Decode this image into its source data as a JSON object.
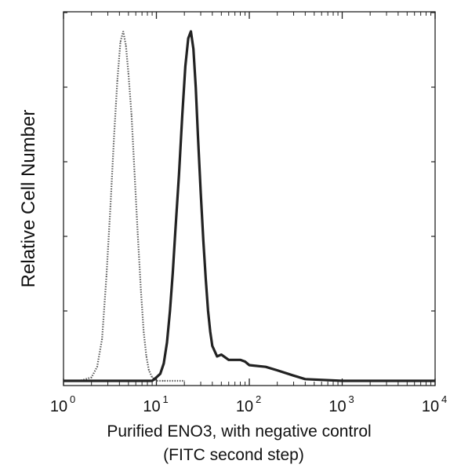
{
  "chart_data": {
    "type": "line",
    "title": "",
    "xlabel": "Purified ENO3, with negative control",
    "xlabel2": "(FITC second step)",
    "ylabel": "Relative Cell Number",
    "x_scale": "log",
    "xlim": [
      1,
      10000
    ],
    "ylim": [
      0,
      1
    ],
    "grid": false,
    "legend": "none",
    "x_ticks": [
      {
        "base": "10",
        "exp": "0",
        "value": 1
      },
      {
        "base": "10",
        "exp": "1",
        "value": 10
      },
      {
        "base": "10",
        "exp": "2",
        "value": 100
      },
      {
        "base": "10",
        "exp": "3",
        "value": 1000
      },
      {
        "base": "10",
        "exp": "4",
        "value": 10000
      }
    ],
    "series": [
      {
        "style": "dotted",
        "color": "#555555",
        "x": [
          1.0,
          1.5,
          2.0,
          2.3,
          2.6,
          2.9,
          3.2,
          3.5,
          3.8,
          4.1,
          4.4,
          4.7,
          5.0,
          5.4,
          5.8,
          6.3,
          6.8,
          7.3,
          7.8,
          8.3,
          9.0,
          10.0,
          12.0,
          20.0
        ],
        "y": [
          0.0,
          0.0,
          0.01,
          0.04,
          0.12,
          0.3,
          0.5,
          0.7,
          0.86,
          0.97,
          1.0,
          0.96,
          0.88,
          0.76,
          0.6,
          0.42,
          0.26,
          0.14,
          0.07,
          0.03,
          0.01,
          0.0,
          0.0,
          0.0
        ]
      },
      {
        "style": "solid",
        "color": "#222222",
        "x": [
          1.0,
          5.0,
          9.0,
          10.0,
          11.0,
          12.0,
          13.0,
          14.0,
          15.0,
          16.0,
          17.5,
          19.0,
          20.5,
          22.0,
          23.5,
          25.0,
          26.5,
          28.0,
          30.0,
          32.0,
          34.0,
          36.0,
          38.0,
          40.0,
          45.0,
          50.0,
          60.0,
          70.0,
          80.0,
          90.0,
          100.0,
          150.0,
          200.0,
          300.0,
          400.0,
          1000.0,
          10000.0
        ],
        "y": [
          0.0,
          0.0,
          0.0,
          0.01,
          0.02,
          0.05,
          0.11,
          0.2,
          0.31,
          0.43,
          0.59,
          0.76,
          0.9,
          0.98,
          1.0,
          0.95,
          0.84,
          0.7,
          0.54,
          0.4,
          0.29,
          0.2,
          0.14,
          0.1,
          0.07,
          0.075,
          0.06,
          0.06,
          0.06,
          0.055,
          0.045,
          0.04,
          0.03,
          0.015,
          0.005,
          0.0,
          0.0
        ]
      }
    ]
  }
}
